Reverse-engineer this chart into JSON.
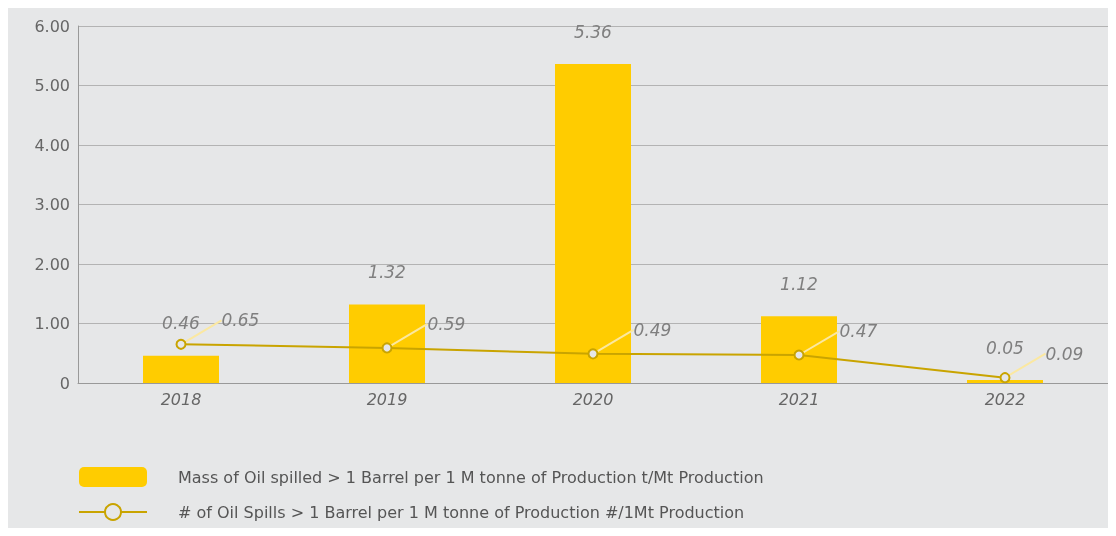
{
  "chart_data": {
    "type": "bar",
    "categories": [
      "2018",
      "2019",
      "2020",
      "2021",
      "2022"
    ],
    "series": [
      {
        "name": "Mass of Oil spilled > 1 Barrel per 1 M tonne of Production t/Mt Production",
        "color": "#ffcc00",
        "values": [
          0.46,
          1.32,
          5.36,
          1.12,
          0.05
        ]
      },
      {
        "name": "# of Oil Spills > 1 Barrel per 1 M tonne of Production #/1Mt Production",
        "type": "line",
        "color": "#c9a400",
        "values": [
          0.65,
          0.59,
          0.49,
          0.47,
          0.09
        ]
      }
    ],
    "ylim": [
      0,
      6
    ],
    "yticks": [
      {
        "value": 0,
        "label": "0"
      },
      {
        "value": 1,
        "label": "1.00"
      },
      {
        "value": 2,
        "label": "2.00"
      },
      {
        "value": 3,
        "label": "3.00"
      },
      {
        "value": 4,
        "label": "4.00"
      },
      {
        "value": 5,
        "label": "5.00"
      },
      {
        "value": 6,
        "label": "6.00"
      }
    ],
    "grid": "y",
    "legend": "bottom left",
    "marker": "circle",
    "line_style": "solid",
    "data_labels": true
  }
}
